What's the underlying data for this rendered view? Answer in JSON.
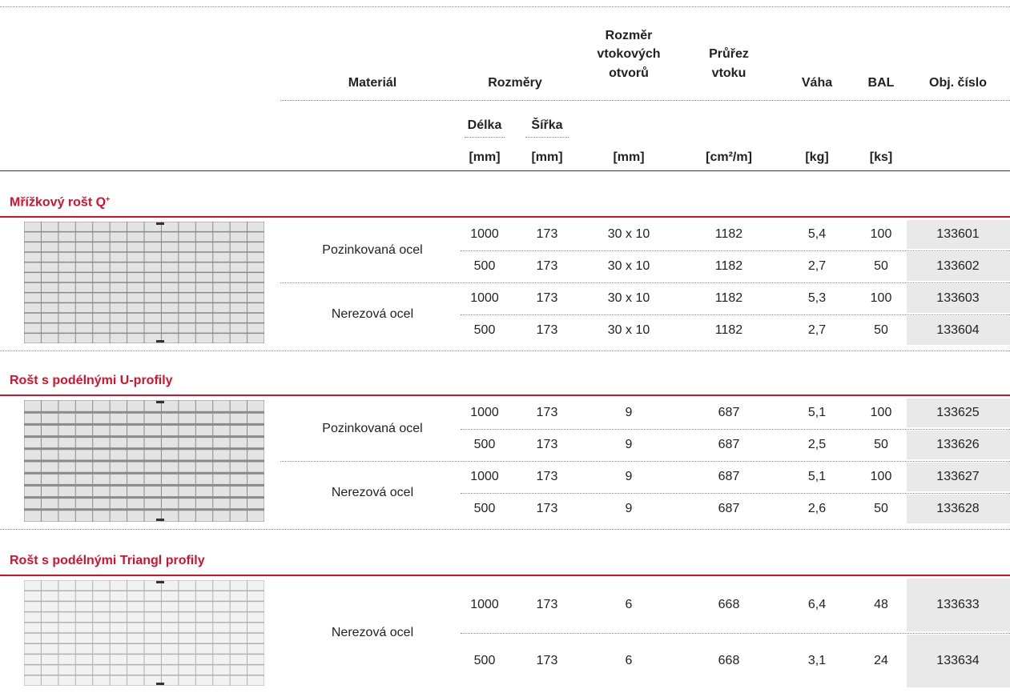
{
  "header": {
    "material": "Materiál",
    "dimensions": "Rozměry",
    "inlet_size": [
      "Rozměr",
      "vtokových",
      "otvorů"
    ],
    "inlet_area": [
      "Průřez",
      "vtoku"
    ],
    "weight": "Váha",
    "pack": "BAL",
    "order_no": "Obj. číslo",
    "length": "Délka",
    "width": "Šířka"
  },
  "units": [
    "[mm]",
    "[mm]",
    "[mm]",
    "[cm²/m]",
    "[kg]",
    "[ks]"
  ],
  "sections": [
    {
      "title": "Mřížkový rošt Q",
      "title_sup": "+",
      "groups": [
        {
          "material": "Pozinkovaná ocel",
          "rows": [
            [
              "1000",
              "173",
              "30 x 10",
              "1182",
              "5,4",
              "100",
              "133601"
            ],
            [
              "500",
              "173",
              "30 x 10",
              "1182",
              "2,7",
              "50",
              "133602"
            ]
          ]
        },
        {
          "material": "Nerezová ocel",
          "rows": [
            [
              "1000",
              "173",
              "30 x 10",
              "1182",
              "5,3",
              "100",
              "133603"
            ],
            [
              "500",
              "173",
              "30 x 10",
              "1182",
              "2,7",
              "50",
              "133604"
            ]
          ]
        }
      ]
    },
    {
      "title": "Rošt s podélnými U-profily",
      "groups": [
        {
          "material": "Pozinkovaná ocel",
          "rows": [
            [
              "1000",
              "173",
              "9",
              "687",
              "5,1",
              "100",
              "133625"
            ],
            [
              "500",
              "173",
              "9",
              "687",
              "2,5",
              "50",
              "133626"
            ]
          ]
        },
        {
          "material": "Nerezová ocel",
          "rows": [
            [
              "1000",
              "173",
              "9",
              "687",
              "5,1",
              "100",
              "133627"
            ],
            [
              "500",
              "173",
              "9",
              "687",
              "2,6",
              "50",
              "133628"
            ]
          ]
        }
      ]
    },
    {
      "title": "Rošt s podélnými Triangl profily",
      "groups": [
        {
          "material": "Nerezová ocel",
          "rows": [
            [
              "1000",
              "173",
              "6",
              "668",
              "6,4",
              "48",
              "133633"
            ],
            [
              "500",
              "173",
              "6",
              "668",
              "3,1",
              "24",
              "133634"
            ]
          ]
        }
      ]
    }
  ]
}
